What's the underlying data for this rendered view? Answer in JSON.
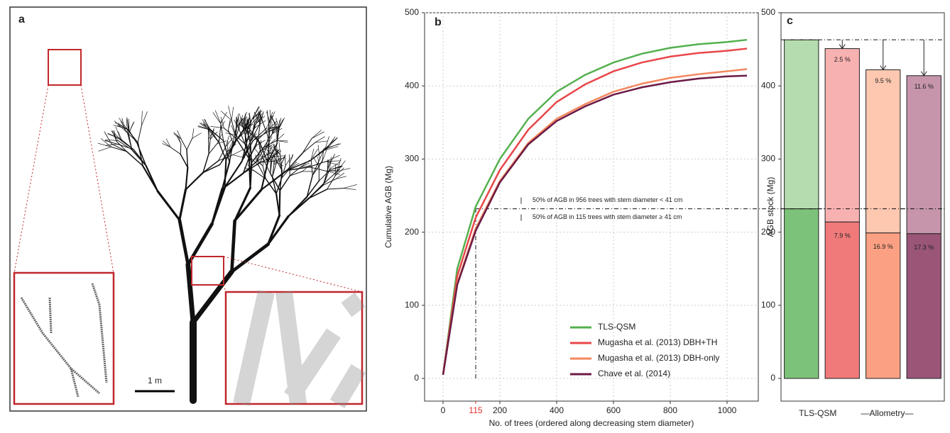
{
  "image_panel": {
    "label": "a",
    "scale_bar": "1 m"
  },
  "chart_data": [
    {
      "type": "line",
      "label": "b",
      "y_label": "Cumulative AGB (Mg)",
      "x_label": "No. of trees (ordered along decreasing stem diameter)",
      "x": [
        0,
        50,
        115,
        200,
        300,
        400,
        500,
        600,
        700,
        800,
        900,
        1000,
        1070
      ],
      "series": [
        {
          "name": "TLS-QSM",
          "color": "#55b04f",
          "values": [
            5,
            150,
            235,
            300,
            355,
            392,
            415,
            432,
            444,
            452,
            457,
            460,
            463
          ]
        },
        {
          "name": "Mugasha et al. (2013) DBH+TH",
          "color": "#e8474a",
          "values": [
            5,
            140,
            220,
            285,
            340,
            378,
            402,
            420,
            432,
            440,
            445,
            448,
            451
          ]
        },
        {
          "name": "Mugasha et al. (2013) DBH-only",
          "color": "#f4875f",
          "values": [
            5,
            130,
            205,
            270,
            322,
            355,
            375,
            392,
            403,
            411,
            416,
            420,
            423
          ]
        },
        {
          "name": "Chave et al. (2014)",
          "color": "#6b1a45",
          "values": [
            5,
            128,
            202,
            268,
            320,
            352,
            372,
            388,
            398,
            405,
            410,
            413,
            414
          ]
        }
      ],
      "xlim": [
        -65,
        1110
      ],
      "ylim": [
        -31,
        500
      ],
      "xticks": [
        0,
        200,
        400,
        600,
        800,
        1000
      ],
      "yticks": [
        0,
        100,
        200,
        300,
        400,
        500
      ],
      "grid": true,
      "legend": "lower-right",
      "threshold": {
        "x": 115,
        "y": 232,
        "color": "#e03030"
      },
      "annotations": [
        "50% of AGB in 956 trees with stem diameter < 41 cm",
        "50% of AGB in 115 trees with stem diameter ≥ 41 cm"
      ]
    },
    {
      "type": "stacked-bar",
      "label": "c",
      "y_label": "AGB stock (Mg)",
      "categories": [
        "TLS-QSM",
        null,
        null,
        null
      ],
      "group_label": "—Allometry—",
      "series": [
        {
          "colors": [
            "#7dc27a",
            "#f07a7a",
            "#fca083",
            "#9a5577"
          ],
          "values": [
            232,
            214,
            199,
            198
          ],
          "labels": [
            null,
            "7.9 %",
            "16.9 %",
            "17.3 %"
          ]
        },
        {
          "colors": [
            "#b5dcae",
            "#f8b1b1",
            "#fdc7b0",
            "#c695ab"
          ],
          "values": [
            231,
            237,
            223,
            216
          ],
          "labels": [
            null,
            "2.5 %",
            "9.5 %",
            "11.6 %"
          ]
        }
      ],
      "ylim": [
        -31,
        500
      ],
      "yticks": [
        0,
        100,
        200,
        300,
        400,
        500
      ],
      "reference_lines": [
        463,
        232
      ]
    }
  ]
}
